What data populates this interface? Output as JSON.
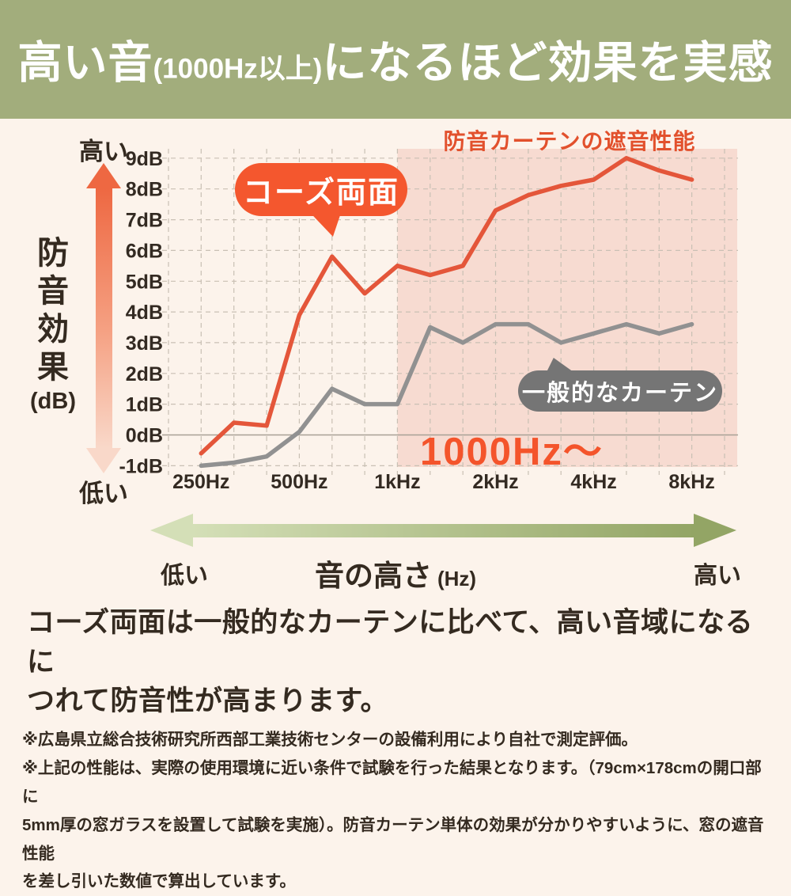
{
  "banner": {
    "part1": "高い音",
    "part2": "(1000Hz以上)",
    "part3": "になるほど効果を実感"
  },
  "chart_data": {
    "type": "line",
    "title": "防音カーテンの遮音性能",
    "categories": [
      "250Hz",
      "315Hz",
      "400Hz",
      "500Hz",
      "630Hz",
      "800Hz",
      "1kHz",
      "1.25kHz",
      "1.6kHz",
      "2kHz",
      "2.5kHz",
      "3.15kHz",
      "4kHz",
      "5kHz",
      "6.3kHz",
      "8kHz"
    ],
    "x_tick_labels": [
      "250Hz",
      "500Hz",
      "1kHz",
      "2kHz",
      "4kHz",
      "8kHz"
    ],
    "y_ticks": [
      "9dB",
      "8dB",
      "7dB",
      "6dB",
      "5dB",
      "4dB",
      "3dB",
      "2dB",
      "1dB",
      "0dB",
      "-1dB"
    ],
    "ylim": [
      -1,
      9
    ],
    "grid": "dashed",
    "series": [
      {
        "name": "コーズ両面",
        "color": "#e4563a",
        "values": [
          -0.6,
          0.4,
          0.3,
          3.9,
          5.8,
          4.6,
          5.5,
          5.2,
          5.5,
          7.3,
          7.8,
          8.1,
          8.3,
          9.0,
          8.6,
          8.3
        ]
      },
      {
        "name": "一般的なカーテン",
        "color": "#919191",
        "values": [
          -1.0,
          -0.9,
          -0.7,
          0.1,
          1.5,
          1.0,
          1.0,
          3.5,
          3.0,
          3.6,
          3.6,
          3.0,
          3.3,
          3.6,
          3.3,
          3.6
        ]
      }
    ],
    "highlight_region": {
      "start_category": "1kHz",
      "label": "1000Hz〜",
      "color": "#f7dbd1"
    },
    "xlabel": "音の高さ (Hz)",
    "ylabel": "防音効果 (dB)",
    "legend_position": "speech-bubbles-on-plot"
  },
  "left_axis": {
    "high": "高い",
    "low": "低い",
    "label": "防音効果",
    "unit": "(dB)"
  },
  "freq_axis": {
    "low": "低い",
    "label": "音の高さ",
    "unit": "(Hz)",
    "high": "高い"
  },
  "description": {
    "line1": "コーズ両面は一般的なカーテンに比べて、高い音域になるに",
    "line2": "つれて防音性が高まります。"
  },
  "footnotes": {
    "line1": "※広島県立総合技術研究所西部工業技術センターの設備利用により自社で測定評価。",
    "line2": "※上記の性能は、実際の使用環境に近い条件で試験を行った結果となります。（79cm×178cmの開口部に",
    "line3": "5mm厚の窓ガラスを設置して試験を実施）。防音カーテン単体の効果が分かりやすいように、窓の遮音性能",
    "line4": "を差し引いた数値で算出しています。"
  },
  "colors": {
    "banner_bg": "#a2ad7c",
    "page_bg": "#fcf3eb",
    "kozu_line": "#e4563a",
    "general_line": "#919191",
    "bubble_orange": "#f4572e",
    "bubble_gray": "#757575",
    "chart_title_orange": "#e2512d",
    "highlight_pink": "#f7dbd1",
    "text_dark": "#342a20",
    "green_arrow_light": "#d4dfb7",
    "green_arrow_dark": "#93a565"
  }
}
